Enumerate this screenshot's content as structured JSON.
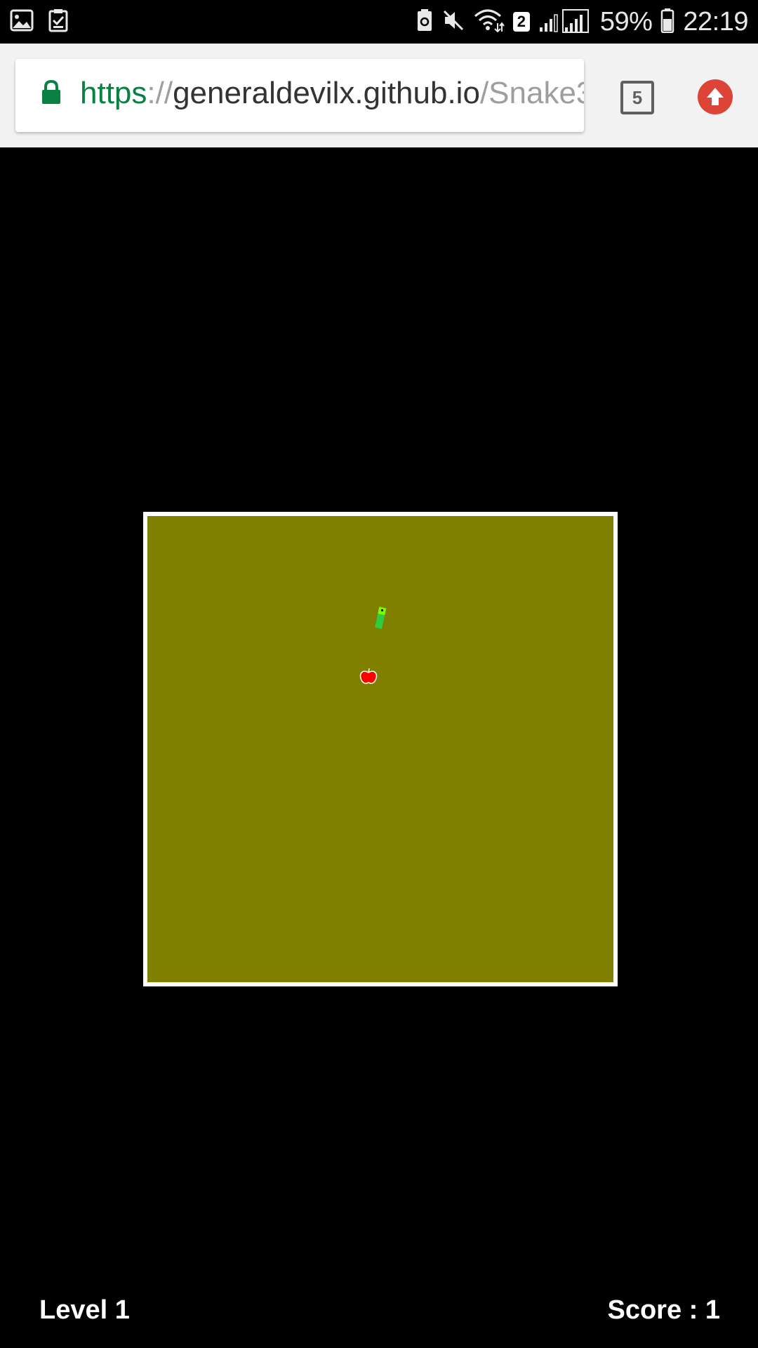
{
  "status_bar": {
    "battery_percent": "59%",
    "time": "22:19",
    "sim_slot": "2",
    "icons": [
      "gallery-icon",
      "task-check-icon",
      "battery-saver-icon",
      "mute-icon",
      "wifi-icon",
      "signal-icon",
      "battery-icon"
    ]
  },
  "browser": {
    "url_scheme": "https",
    "url_separator": "://",
    "url_host": "generaldevilx.github.io",
    "url_path": "/Snake3",
    "tab_count": "5",
    "icons": [
      "lock-icon",
      "tabs-icon",
      "update-icon"
    ],
    "colors": {
      "secure": "#0b8043",
      "update": "#db4437"
    }
  },
  "game": {
    "board_color": "#808000",
    "border_color": "#ffffff",
    "snake_color": "#2ecc40",
    "apple_color": "#ff0000",
    "level_label": "Level 1",
    "score_label": "Score : 1"
  }
}
